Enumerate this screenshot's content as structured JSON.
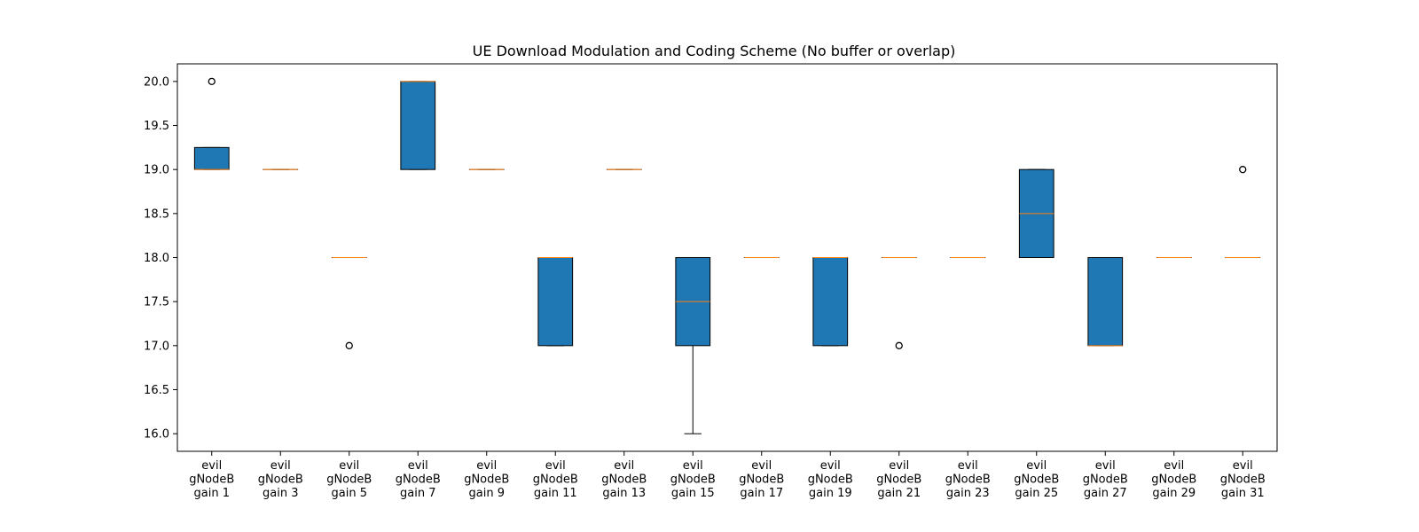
{
  "chart_data": {
    "type": "box",
    "title": "UE Download Modulation and Coding Scheme (No buffer or overlap)",
    "xlabel": "",
    "ylabel": "",
    "ylim": [
      15.8,
      20.2
    ],
    "yticks": [
      16.0,
      16.5,
      17.0,
      17.5,
      18.0,
      18.5,
      19.0,
      19.5,
      20.0
    ],
    "ytick_labels": [
      "16.0",
      "16.5",
      "17.0",
      "17.5",
      "18.0",
      "18.5",
      "19.0",
      "19.5",
      "20.0"
    ],
    "grid": false,
    "legend": "none",
    "box_color": "#1f77b4",
    "median_color": "#ff7f0e",
    "categories": [
      "evil gNodeB gain 1",
      "evil gNodeB gain 3",
      "evil gNodeB gain 5",
      "evil gNodeB gain 7",
      "evil gNodeB gain 9",
      "evil gNodeB gain 11",
      "evil gNodeB gain 13",
      "evil gNodeB gain 15",
      "evil gNodeB gain 17",
      "evil gNodeB gain 19",
      "evil gNodeB gain 21",
      "evil gNodeB gain 23",
      "evil gNodeB gain 25",
      "evil gNodeB gain 27",
      "evil gNodeB gain 29",
      "evil gNodeB gain 31"
    ],
    "category_lines": [
      [
        "evil",
        "gNodeB",
        "gain 1"
      ],
      [
        "evil",
        "gNodeB",
        "gain 3"
      ],
      [
        "evil",
        "gNodeB",
        "gain 5"
      ],
      [
        "evil",
        "gNodeB",
        "gain 7"
      ],
      [
        "evil",
        "gNodeB",
        "gain 9"
      ],
      [
        "evil",
        "gNodeB",
        "gain 11"
      ],
      [
        "evil",
        "gNodeB",
        "gain 13"
      ],
      [
        "evil",
        "gNodeB",
        "gain 15"
      ],
      [
        "evil",
        "gNodeB",
        "gain 17"
      ],
      [
        "evil",
        "gNodeB",
        "gain 19"
      ],
      [
        "evil",
        "gNodeB",
        "gain 21"
      ],
      [
        "evil",
        "gNodeB",
        "gain 23"
      ],
      [
        "evil",
        "gNodeB",
        "gain 25"
      ],
      [
        "evil",
        "gNodeB",
        "gain 27"
      ],
      [
        "evil",
        "gNodeB",
        "gain 29"
      ],
      [
        "evil",
        "gNodeB",
        "gain 31"
      ]
    ],
    "boxes": [
      {
        "whislo": 19.0,
        "q1": 19.0,
        "med": 19.0,
        "q3": 19.25,
        "whishi": 19.25,
        "fliers": [
          20.0
        ]
      },
      {
        "whislo": 19.0,
        "q1": 19.0,
        "med": 19.0,
        "q3": 19.0,
        "whishi": 19.0,
        "fliers": []
      },
      {
        "whislo": 18.0,
        "q1": 18.0,
        "med": 18.0,
        "q3": 18.0,
        "whishi": 18.0,
        "fliers": [
          17.0
        ]
      },
      {
        "whislo": 19.0,
        "q1": 19.0,
        "med": 20.0,
        "q3": 20.0,
        "whishi": 20.0,
        "fliers": []
      },
      {
        "whislo": 19.0,
        "q1": 19.0,
        "med": 19.0,
        "q3": 19.0,
        "whishi": 19.0,
        "fliers": []
      },
      {
        "whislo": 17.0,
        "q1": 17.0,
        "med": 18.0,
        "q3": 18.0,
        "whishi": 18.0,
        "fliers": []
      },
      {
        "whislo": 19.0,
        "q1": 19.0,
        "med": 19.0,
        "q3": 19.0,
        "whishi": 19.0,
        "fliers": []
      },
      {
        "whislo": 16.0,
        "q1": 17.0,
        "med": 17.5,
        "q3": 18.0,
        "whishi": 18.0,
        "fliers": []
      },
      {
        "whislo": 18.0,
        "q1": 18.0,
        "med": 18.0,
        "q3": 18.0,
        "whishi": 18.0,
        "fliers": []
      },
      {
        "whislo": 17.0,
        "q1": 17.0,
        "med": 18.0,
        "q3": 18.0,
        "whishi": 18.0,
        "fliers": []
      },
      {
        "whislo": 18.0,
        "q1": 18.0,
        "med": 18.0,
        "q3": 18.0,
        "whishi": 18.0,
        "fliers": [
          17.0
        ]
      },
      {
        "whislo": 18.0,
        "q1": 18.0,
        "med": 18.0,
        "q3": 18.0,
        "whishi": 18.0,
        "fliers": []
      },
      {
        "whislo": 18.0,
        "q1": 18.0,
        "med": 18.5,
        "q3": 19.0,
        "whishi": 19.0,
        "fliers": []
      },
      {
        "whislo": 17.0,
        "q1": 17.0,
        "med": 17.0,
        "q3": 18.0,
        "whishi": 18.0,
        "fliers": []
      },
      {
        "whislo": 18.0,
        "q1": 18.0,
        "med": 18.0,
        "q3": 18.0,
        "whishi": 18.0,
        "fliers": []
      },
      {
        "whislo": 18.0,
        "q1": 18.0,
        "med": 18.0,
        "q3": 18.0,
        "whishi": 18.0,
        "fliers": [
          19.0
        ]
      }
    ]
  }
}
